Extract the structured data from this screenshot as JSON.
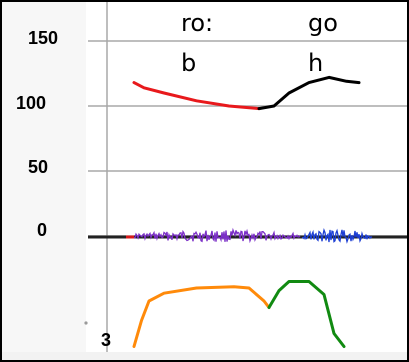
{
  "chart_data": {
    "type": "line",
    "title": "",
    "xlabel": "",
    "ylabel": "",
    "yticks": [
      "150",
      "100",
      "50",
      "0"
    ],
    "ytick_values": [
      150,
      100,
      50,
      0
    ],
    "xticks": [
      "3"
    ],
    "annotations": {
      "left_line1": "ro:",
      "left_line2": "b",
      "right_line1": "go",
      "right_line2": "h"
    },
    "series": [
      {
        "color": "#e8191c",
        "values": [
          [
            0,
            118
          ],
          [
            0.04,
            114
          ],
          [
            0.12,
            110
          ],
          [
            0.25,
            104
          ],
          [
            0.38,
            100
          ],
          [
            0.5,
            98
          ]
        ]
      },
      {
        "color": "#000000",
        "values": [
          [
            0.5,
            98
          ],
          [
            0.56,
            100
          ],
          [
            0.62,
            110
          ],
          [
            0.7,
            118
          ],
          [
            0.78,
            122
          ],
          [
            0.85,
            119
          ],
          [
            0.9,
            118
          ]
        ]
      },
      {
        "color": "#ff8a0a",
        "values": [
          [
            0,
            -85
          ],
          [
            0.03,
            -65
          ],
          [
            0.06,
            -50
          ],
          [
            0.12,
            -44
          ],
          [
            0.25,
            -40
          ],
          [
            0.4,
            -39
          ],
          [
            0.46,
            -40
          ],
          [
            0.52,
            -50
          ],
          [
            0.54,
            -55
          ]
        ]
      },
      {
        "color": "#118a11",
        "values": [
          [
            0.54,
            -55
          ],
          [
            0.58,
            -42
          ],
          [
            0.62,
            -35
          ],
          [
            0.7,
            -35
          ],
          [
            0.76,
            -45
          ],
          [
            0.8,
            -75
          ],
          [
            0.84,
            -85
          ]
        ]
      }
    ],
    "signal": {
      "purple_color": "#7b2fc7",
      "blue_color": "#1d3fd4",
      "baseline_color": "#222222",
      "red_segment_color": "#d81a1a"
    },
    "ylim": [
      -90,
      170
    ],
    "grid": true
  }
}
